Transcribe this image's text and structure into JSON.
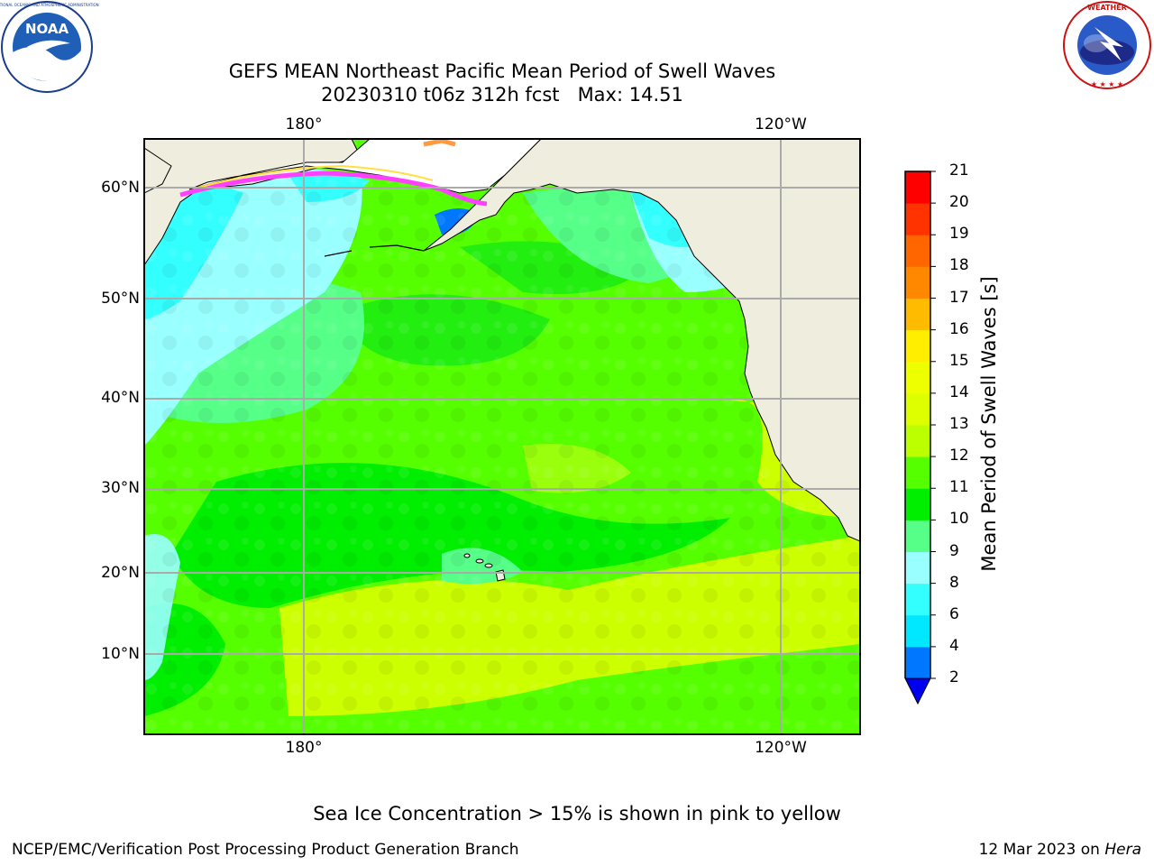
{
  "title_line1": "GEFS MEAN Northeast Pacific Mean Period of Swell Waves",
  "title_line2": "20230310 t06z 312h fcst   Max: 14.51",
  "logos": {
    "left": "NOAA",
    "left_ring_text": "NATIONAL OCEANIC AND ATMOSPHERIC ADMINISTRATION · U.S. DEPARTMENT OF COMMERCE",
    "right_ring_text": "NATIONAL WEATHER SERVICE"
  },
  "map": {
    "lon_labels": [
      "180°",
      "120°W"
    ],
    "lat_labels": [
      "60°N",
      "50°N",
      "40°N",
      "30°N",
      "20°N",
      "10°N"
    ],
    "grid": true,
    "land_color": "#efedde",
    "sea_ice_colors": [
      "#ff40ff",
      "#ff9a40",
      "#ffe040"
    ]
  },
  "colorbar": {
    "label": "Mean Period of Swell Waves [s]",
    "ticks": [
      "2",
      "4",
      "6",
      "8",
      "9",
      "10",
      "11",
      "12",
      "13",
      "14",
      "15",
      "16",
      "17",
      "18",
      "19",
      "20",
      "21"
    ],
    "colors": [
      "#0077ff",
      "#00e8ff",
      "#33ffff",
      "#99ffff",
      "#55ff88",
      "#00ee00",
      "#55ff00",
      "#bbff00",
      "#ddff00",
      "#eeff00",
      "#ffee00",
      "#ffbb00",
      "#ff8800",
      "#ff6600",
      "#ff3300",
      "#ff0000"
    ],
    "extend_color": "#0000ee"
  },
  "footnote": "Sea Ice Concentration > 15% is shown in pink to yellow",
  "credit": "NCEP/EMC/Verification Post Processing Product Generation Branch",
  "date": "12 Mar 2023 on ",
  "host": "Hera"
}
